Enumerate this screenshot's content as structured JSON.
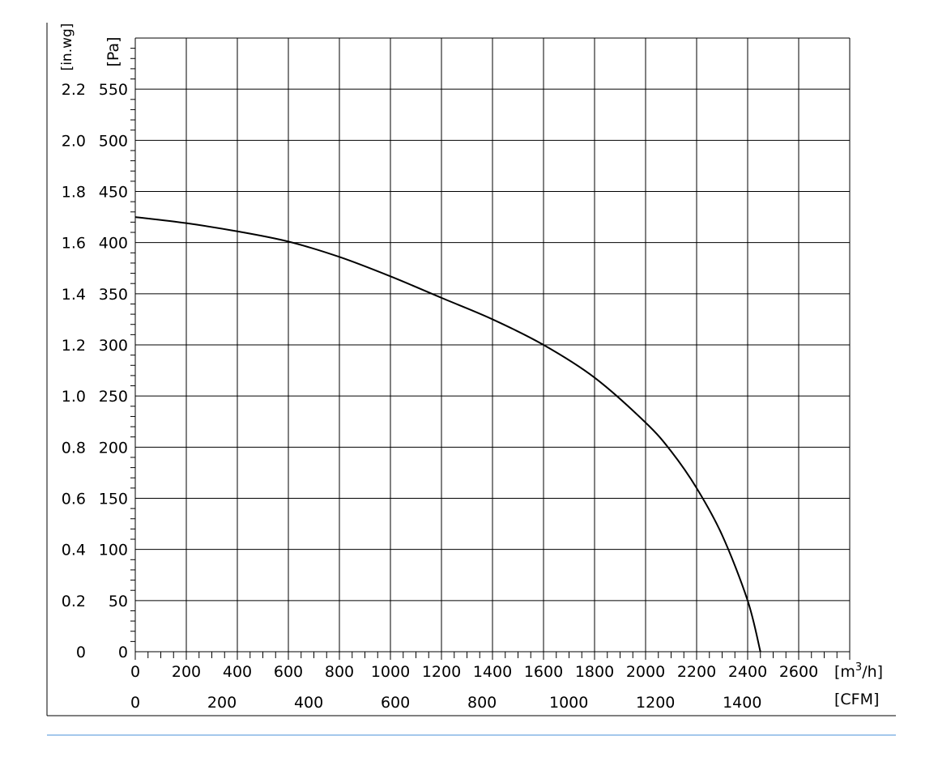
{
  "chart_data": {
    "type": "line",
    "title": "",
    "xlabel": "",
    "ylabel": "",
    "grid": true,
    "x_axis_primary": {
      "unit_base": "[m",
      "unit_sup": "3",
      "unit_tail": "/h]",
      "range": [
        0,
        2800
      ],
      "ticks": [
        "0",
        "200",
        "400",
        "600",
        "800",
        "1000",
        "1200",
        "1400",
        "1600",
        "1800",
        "2000",
        "2200",
        "2400",
        "2600"
      ]
    },
    "x_axis_secondary": {
      "unit": "[CFM]",
      "ticks": [
        "0",
        "200",
        "400",
        "600",
        "800",
        "1000",
        "1200",
        "1400"
      ]
    },
    "y_axis_primary": {
      "unit": "[Pa]",
      "range": [
        0,
        600
      ],
      "ticks": [
        "0",
        "50",
        "100",
        "150",
        "200",
        "250",
        "300",
        "350",
        "400",
        "450",
        "500",
        "550"
      ]
    },
    "y_axis_secondary": {
      "unit": "[in.wg]",
      "ticks": [
        "0",
        "0.2",
        "0.4",
        "0.6",
        "0.8",
        "1.0",
        "1.2",
        "1.4",
        "1.6",
        "1.8",
        "2.0",
        "2.2"
      ]
    },
    "series": [
      {
        "x": [
          0,
          200,
          400,
          600,
          800,
          1000,
          1200,
          1400,
          1600,
          1800,
          2000,
          2100,
          2200,
          2300,
          2400,
          2450
        ],
        "y": [
          425,
          419,
          411,
          401,
          386,
          367,
          346,
          325,
          300,
          268,
          224,
          196,
          160,
          114,
          50,
          0
        ]
      }
    ]
  }
}
